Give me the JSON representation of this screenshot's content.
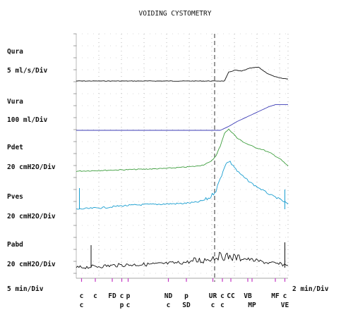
{
  "chart_data": {
    "type": "line",
    "title": "VOIDING CYSTOMETRY",
    "x_scale_left": "5 min/Div",
    "x_scale_right": "2 min/Div",
    "x_range": [
      0,
      100
    ],
    "split_at": 68,
    "grid": true,
    "channels": [
      {
        "name": "Qura",
        "scale": "5 ml/s/Div",
        "color": "#111111",
        "points": [
          [
            0,
            0
          ],
          [
            50,
            0
          ],
          [
            68,
            0
          ],
          [
            70,
            0
          ],
          [
            72,
            0.9
          ],
          [
            75,
            1.1
          ],
          [
            78,
            1.0
          ],
          [
            82,
            1.3
          ],
          [
            86,
            1.4
          ],
          [
            88,
            1.1
          ],
          [
            90,
            0.8
          ],
          [
            93,
            0.5
          ],
          [
            96,
            0.3
          ],
          [
            100,
            0.2
          ]
        ]
      },
      {
        "name": "Vura",
        "scale": "100 ml/Div",
        "color": "#3b3bb5",
        "points": [
          [
            0,
            0
          ],
          [
            50,
            0
          ],
          [
            68,
            0
          ],
          [
            72,
            0.4
          ],
          [
            76,
            0.9
          ],
          [
            80,
            1.3
          ],
          [
            84,
            1.7
          ],
          [
            88,
            2.1
          ],
          [
            91,
            2.4
          ],
          [
            94,
            2.6
          ],
          [
            100,
            2.6
          ]
        ]
      },
      {
        "name": "Pdet",
        "scale": "20 cmH2O/Div",
        "color": "#3e9e3e",
        "points": [
          [
            0,
            0
          ],
          [
            10,
            0.05
          ],
          [
            20,
            0.1
          ],
          [
            30,
            0.15
          ],
          [
            40,
            0.2
          ],
          [
            50,
            0.3
          ],
          [
            57,
            0.4
          ],
          [
            60,
            0.5
          ],
          [
            63,
            0.7
          ],
          [
            66,
            1.2
          ],
          [
            68,
            2.0
          ],
          [
            70,
            3.0
          ],
          [
            72,
            3.3
          ],
          [
            74,
            3.0
          ],
          [
            76,
            2.6
          ],
          [
            80,
            2.2
          ],
          [
            84,
            1.9
          ],
          [
            88,
            1.7
          ],
          [
            92,
            1.4
          ],
          [
            96,
            1.0
          ],
          [
            100,
            0.4
          ]
        ]
      },
      {
        "name": "Pves",
        "scale": "20 cmH2O/Div",
        "color": "#1a9ed0",
        "points": [
          [
            0,
            0
          ],
          [
            5,
            0.05
          ],
          [
            10,
            0.1
          ],
          [
            15,
            0.15
          ],
          [
            20,
            0.25
          ],
          [
            25,
            0.3
          ],
          [
            30,
            0.35
          ],
          [
            40,
            0.4
          ],
          [
            50,
            0.45
          ],
          [
            57,
            0.55
          ],
          [
            60,
            0.7
          ],
          [
            63,
            0.9
          ],
          [
            66,
            1.5
          ],
          [
            68,
            2.4
          ],
          [
            70,
            3.4
          ],
          [
            72,
            3.8
          ],
          [
            74,
            3.5
          ],
          [
            76,
            3.0
          ],
          [
            80,
            2.4
          ],
          [
            84,
            1.9
          ],
          [
            88,
            1.5
          ],
          [
            92,
            1.1
          ],
          [
            96,
            0.8
          ],
          [
            100,
            0.4
          ]
        ]
      },
      {
        "name": "Pabd",
        "scale": "20 cmH2O/Div",
        "color": "#111111",
        "points": [
          [
            0,
            0
          ],
          [
            10,
            0.1
          ],
          [
            20,
            0.2
          ],
          [
            30,
            0.25
          ],
          [
            40,
            0.3
          ],
          [
            50,
            0.4
          ],
          [
            55,
            0.5
          ],
          [
            60,
            0.6
          ],
          [
            64,
            0.8
          ],
          [
            67,
            0.9
          ],
          [
            70,
            0.9
          ],
          [
            75,
            0.8
          ],
          [
            80,
            0.7
          ],
          [
            85,
            0.55
          ],
          [
            90,
            0.4
          ],
          [
            95,
            0.3
          ],
          [
            100,
            0.2
          ]
        ]
      }
    ],
    "event_labels": [
      {
        "top": "c",
        "bottom": "c",
        "x": 2.5
      },
      {
        "top": "c",
        "bottom": "",
        "x": 9
      },
      {
        "top": "FD",
        "bottom": "",
        "x": 17
      },
      {
        "top": "c",
        "bottom": "p",
        "x": 21.5
      },
      {
        "top": "p",
        "bottom": "c",
        "x": 24.5
      },
      {
        "top": "ND",
        "bottom": "c",
        "x": 43.5
      },
      {
        "top": "p",
        "bottom": "SD",
        "x": 52
      },
      {
        "top": "UR",
        "bottom": "c",
        "x": 64.5
      },
      {
        "top": "c",
        "bottom": "c",
        "x": 69
      },
      {
        "top": "CC",
        "bottom": "",
        "x": 73
      },
      {
        "top": "VB",
        "bottom": "",
        "x": 81
      },
      {
        "top": "",
        "bottom": "MP",
        "x": 83
      },
      {
        "top": "MF",
        "bottom": "",
        "x": 94
      },
      {
        "top": "c",
        "bottom": "VE",
        "x": 98.5
      }
    ]
  }
}
